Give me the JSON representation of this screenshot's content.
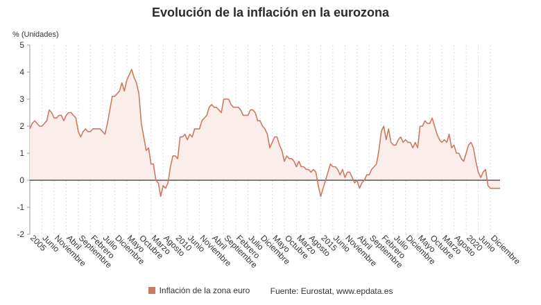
{
  "title": "Evolución de la inflación en la eurozona",
  "unit_label": "% (Unidades)",
  "legend_label": "Inflación de la zona euro",
  "source": "Fuente: Eurostat, www.epdata.es",
  "colors": {
    "line": "#c97a63",
    "fill": "#fbeeea",
    "grid": "#dcdcdc",
    "zero": "#333333"
  },
  "chart_data": {
    "type": "area",
    "series": [
      {
        "name": "Inflación de la zona euro",
        "values": [
          1.9,
          2.1,
          2.2,
          2.1,
          2.0,
          2.0,
          2.1,
          2.2,
          2.6,
          2.5,
          2.3,
          2.3,
          2.4,
          2.4,
          2.2,
          2.4,
          2.5,
          2.5,
          2.4,
          2.3,
          1.8,
          1.6,
          1.8,
          1.9,
          1.8,
          1.8,
          1.9,
          1.9,
          1.9,
          1.9,
          1.8,
          1.7,
          2.1,
          2.6,
          3.1,
          3.1,
          3.2,
          3.3,
          3.6,
          3.3,
          3.7,
          3.9,
          4.1,
          3.8,
          3.6,
          3.2,
          2.1,
          1.6,
          1.1,
          1.2,
          0.6,
          0.6,
          0.0,
          -0.1,
          -0.6,
          -0.2,
          -0.3,
          -0.1,
          0.5,
          0.9,
          0.9,
          0.8,
          1.6,
          1.6,
          1.7,
          1.5,
          1.7,
          1.6,
          1.9,
          1.9,
          1.9,
          2.2,
          2.3,
          2.4,
          2.7,
          2.8,
          2.7,
          2.7,
          2.6,
          2.5,
          3.0,
          3.0,
          3.0,
          2.8,
          2.7,
          2.7,
          2.7,
          2.6,
          2.4,
          2.4,
          2.4,
          2.6,
          2.6,
          2.5,
          2.2,
          2.2,
          2.0,
          1.9,
          1.7,
          1.2,
          1.4,
          1.6,
          1.6,
          1.3,
          1.1,
          0.7,
          0.9,
          0.8,
          0.8,
          0.7,
          0.5,
          0.7,
          0.5,
          0.5,
          0.4,
          0.4,
          0.3,
          0.4,
          0.3,
          -0.2,
          -0.6,
          -0.3,
          0.0,
          0.3,
          0.6,
          0.5,
          0.5,
          0.4,
          0.2,
          0.4,
          0.1,
          0.3,
          0.3,
          0.1,
          -0.1,
          0.0,
          -0.3,
          -0.1,
          0.0,
          0.2,
          0.2,
          0.4,
          0.5,
          0.6,
          1.1,
          1.8,
          2.0,
          1.5,
          1.9,
          1.4,
          1.3,
          1.3,
          1.5,
          1.6,
          1.4,
          1.5,
          1.4,
          1.4,
          1.2,
          1.4,
          1.2,
          2.0,
          2.0,
          2.2,
          2.1,
          2.1,
          2.3,
          2.0,
          1.7,
          1.5,
          1.4,
          1.5,
          1.4,
          1.7,
          1.2,
          1.3,
          1.0,
          1.0,
          0.8,
          0.7,
          1.0,
          1.3,
          1.4,
          1.2,
          0.7,
          0.3,
          0.1,
          0.3,
          0.4,
          -0.2,
          -0.3,
          -0.3,
          -0.3,
          -0.3,
          -0.3
        ]
      }
    ],
    "x_start": "2005-01",
    "x_end": "2020-12",
    "x_tick_labels": [
      "2005",
      "Junio",
      "Noviembre",
      "Abril",
      "Septiembre",
      "Febrero",
      "Julio",
      "Diciembre",
      "Mayo",
      "Octubre",
      "Marzo",
      "Agosto",
      "2010",
      "Junio",
      "Noviembre",
      "Abril",
      "Septiembre",
      "Febrero",
      "Julio",
      "Diciembre",
      "Mayo",
      "Octubre",
      "Marzo",
      "Agosto",
      "2015",
      "Junio",
      "Noviembre",
      "Abril",
      "Septiembre",
      "Febrero",
      "Julio",
      "Diciembre",
      "Mayo",
      "Octubre",
      "Marzo",
      "Agosto",
      "2020",
      "Junio",
      "Diciembre"
    ],
    "y_ticks": [
      "5",
      "4",
      "3",
      "2",
      "1",
      "0",
      "-1",
      "-2"
    ],
    "ylim": [
      -2,
      5
    ],
    "grid": "vertical dashed",
    "legend_position": "bottom-center"
  }
}
